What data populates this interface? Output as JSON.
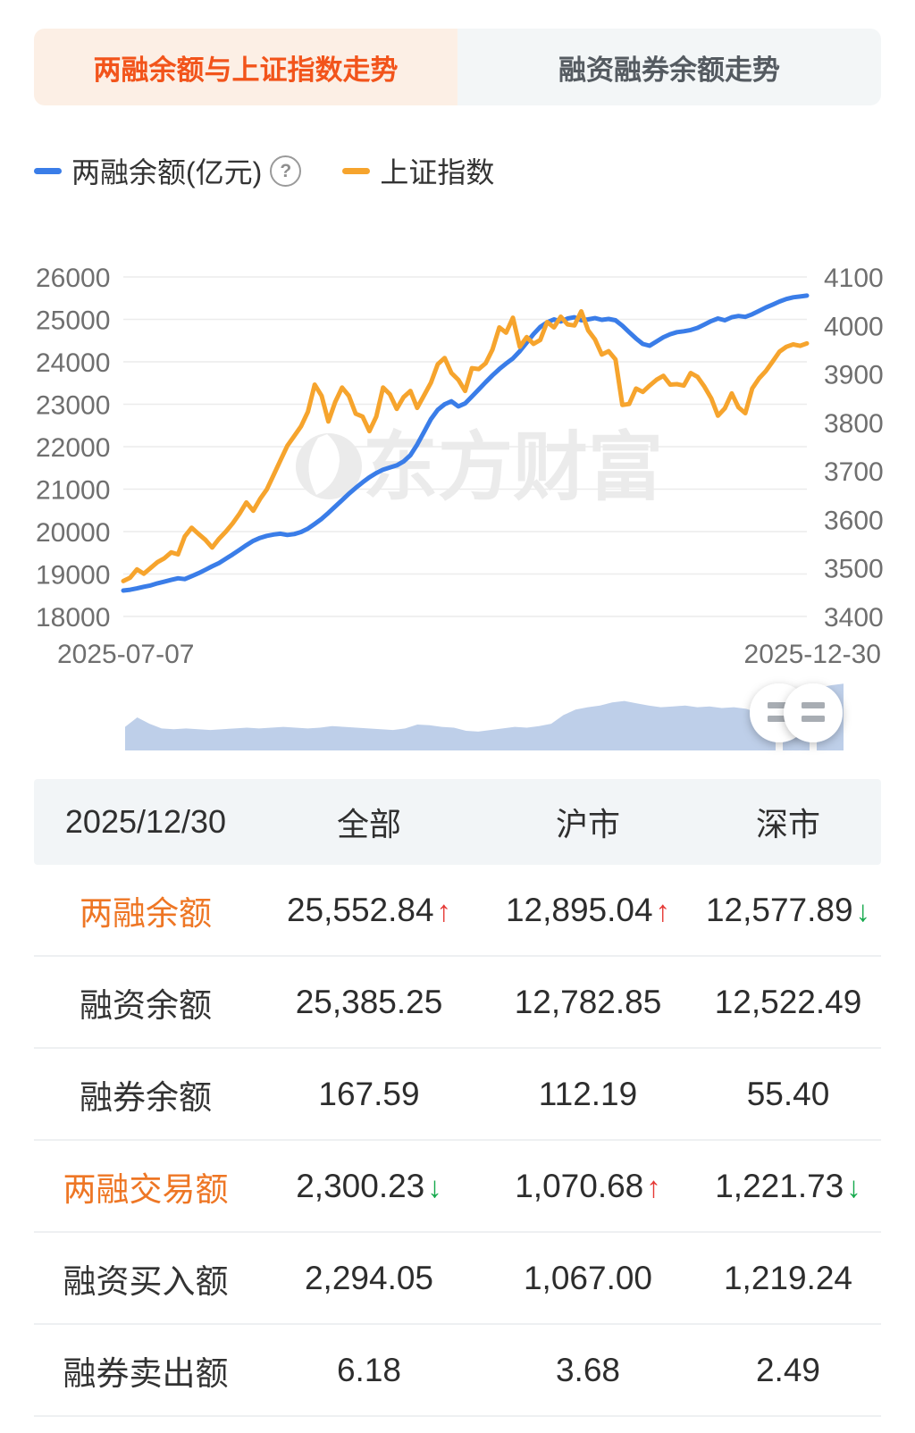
{
  "tabs": [
    {
      "label": "两融余额与上证指数走势",
      "active": true
    },
    {
      "label": "融资融券余额走势",
      "active": false
    }
  ],
  "legend": {
    "items": [
      {
        "label": "两融余额(亿元)",
        "color": "#3a7de8",
        "has_help": true
      },
      {
        "label": "上证指数",
        "color": "#f6a42d",
        "has_help": false
      }
    ]
  },
  "glyphs": {
    "up_arrow": "↑",
    "down_arrow": "↓",
    "help": "?"
  },
  "chart_data": {
    "type": "line",
    "x_start_label": "2025-07-07",
    "x_end_label": "2025-12-30",
    "watermark": "东方财富",
    "grid": true,
    "legend_position": "top",
    "left_axis": {
      "title": "两融余额(亿元)",
      "min": 18000,
      "max": 26000,
      "ticks": [
        26000,
        25000,
        24000,
        23000,
        22000,
        21000,
        20000,
        19000,
        18000
      ]
    },
    "right_axis": {
      "title": "上证指数",
      "min": 3400,
      "max": 4100,
      "ticks": [
        4100,
        4000,
        3900,
        3800,
        3700,
        3600,
        3500,
        3400
      ]
    },
    "series": [
      {
        "name": "两融余额(亿元)",
        "axis": "left",
        "color": "#3a7de8",
        "values": [
          18610,
          18630,
          18660,
          18700,
          18730,
          18780,
          18820,
          18860,
          18900,
          18880,
          18950,
          19020,
          19100,
          19180,
          19260,
          19360,
          19460,
          19570,
          19680,
          19780,
          19850,
          19900,
          19930,
          19950,
          19920,
          19940,
          19990,
          20070,
          20180,
          20300,
          20440,
          20590,
          20740,
          20890,
          21030,
          21160,
          21280,
          21380,
          21460,
          21510,
          21560,
          21650,
          21800,
          22050,
          22350,
          22650,
          22870,
          23000,
          23070,
          22950,
          23020,
          23180,
          23350,
          23520,
          23680,
          23830,
          23960,
          24080,
          24250,
          24450,
          24650,
          24820,
          24930,
          25000,
          24950,
          25020,
          25050,
          24980,
          25000,
          25030,
          24990,
          25010,
          24980,
          24850,
          24700,
          24550,
          24420,
          24380,
          24480,
          24580,
          24650,
          24700,
          24720,
          24750,
          24800,
          24880,
          24960,
          25020,
          24980,
          25050,
          25080,
          25060,
          25120,
          25200,
          25280,
          25350,
          25420,
          25480,
          25520,
          25540,
          25560
        ]
      },
      {
        "name": "上证指数",
        "axis": "right",
        "color": "#f6a42d",
        "values": [
          3473,
          3480,
          3497,
          3488,
          3500,
          3512,
          3520,
          3532,
          3528,
          3565,
          3583,
          3570,
          3558,
          3542,
          3560,
          3575,
          3592,
          3612,
          3635,
          3618,
          3642,
          3662,
          3692,
          3722,
          3752,
          3772,
          3792,
          3822,
          3878,
          3855,
          3802,
          3842,
          3872,
          3855,
          3818,
          3812,
          3782,
          3812,
          3872,
          3858,
          3828,
          3852,
          3865,
          3830,
          3856,
          3882,
          3920,
          3933,
          3902,
          3888,
          3865,
          3912,
          3910,
          3922,
          3950,
          3996,
          3985,
          4016,
          3956,
          3976,
          3962,
          3970,
          4007,
          3996,
          4018,
          4002,
          4000,
          4029,
          3990,
          3971,
          3940,
          3947,
          3930,
          3836,
          3838,
          3870,
          3863,
          3876,
          3888,
          3896,
          3878,
          3879,
          3876,
          3902,
          3894,
          3874,
          3850,
          3814,
          3829,
          3860,
          3831,
          3819,
          3870,
          3891,
          3906,
          3926,
          3946,
          3956,
          3961,
          3958,
          3963
        ]
      }
    ],
    "navigator": {
      "fill": "#becfe9",
      "values": [
        0.3,
        0.42,
        0.34,
        0.28,
        0.27,
        0.28,
        0.27,
        0.26,
        0.27,
        0.28,
        0.29,
        0.28,
        0.29,
        0.3,
        0.29,
        0.28,
        0.29,
        0.31,
        0.3,
        0.29,
        0.28,
        0.27,
        0.26,
        0.28,
        0.33,
        0.32,
        0.3,
        0.29,
        0.25,
        0.24,
        0.26,
        0.28,
        0.3,
        0.29,
        0.31,
        0.34,
        0.45,
        0.52,
        0.55,
        0.57,
        0.61,
        0.63,
        0.6,
        0.57,
        0.55,
        0.56,
        0.57,
        0.55,
        0.56,
        0.54,
        0.55,
        0.53,
        0.48,
        0.46,
        0.5,
        0.52,
        0.72,
        0.8,
        0.83,
        0.85
      ]
    }
  },
  "table": {
    "header": [
      "2025/12/30",
      "全部",
      "沪市",
      "深市"
    ],
    "rows": [
      {
        "label": "两融余额",
        "highlight": true,
        "cells": [
          {
            "value": "25,552.84",
            "arrow": "up"
          },
          {
            "value": "12,895.04",
            "arrow": "up"
          },
          {
            "value": "12,577.89",
            "arrow": "down"
          }
        ]
      },
      {
        "label": "融资余额",
        "highlight": false,
        "cells": [
          {
            "value": "25,385.25"
          },
          {
            "value": "12,782.85"
          },
          {
            "value": "12,522.49"
          }
        ]
      },
      {
        "label": "融券余额",
        "highlight": false,
        "cells": [
          {
            "value": "167.59"
          },
          {
            "value": "112.19"
          },
          {
            "value": "55.40"
          }
        ]
      },
      {
        "label": "两融交易额",
        "highlight": true,
        "cells": [
          {
            "value": "2,300.23",
            "arrow": "down"
          },
          {
            "value": "1,070.68",
            "arrow": "up"
          },
          {
            "value": "1,221.73",
            "arrow": "down"
          }
        ]
      },
      {
        "label": "融资买入额",
        "highlight": false,
        "cells": [
          {
            "value": "2,294.05"
          },
          {
            "value": "1,067.00"
          },
          {
            "value": "1,219.24"
          }
        ]
      },
      {
        "label": "融券卖出额",
        "highlight": false,
        "cells": [
          {
            "value": "6.18"
          },
          {
            "value": "3.68"
          },
          {
            "value": "2.49"
          }
        ]
      }
    ]
  },
  "colors": {
    "accent_orange": "#f2541b",
    "tab_active_bg": "#fcefe5",
    "tab_inactive_bg": "#f3f6f7",
    "row_label_orange": "#ee7624",
    "up_red": "#e53935",
    "down_green": "#16a94d",
    "line_blue": "#3a7de8",
    "line_orange": "#f6a42d",
    "navigator_fill": "#becfe9",
    "grid_line": "#ececec",
    "axis_label": "#6f6f6f"
  }
}
